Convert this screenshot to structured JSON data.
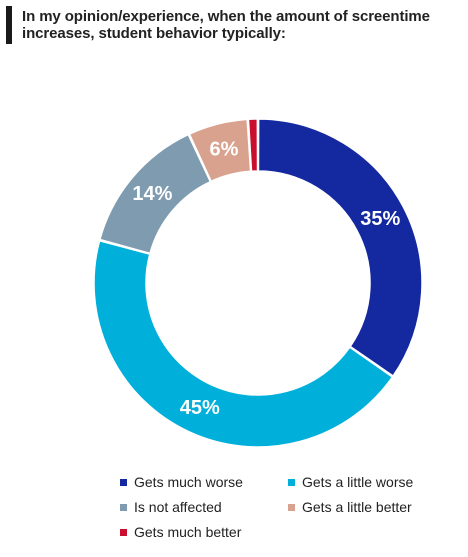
{
  "title": "In my opinion/experience, when the amount of screentime increases, student behavior typically:",
  "chart_data": {
    "type": "pie",
    "style": "donut",
    "title": "In my opinion/experience, when the amount of screentime increases, student behavior typically:",
    "categories": [
      "Gets much worse",
      "Gets a little worse",
      "Is not affected",
      "Gets a little better",
      "Gets much better"
    ],
    "values": [
      35,
      45,
      14,
      6,
      1
    ],
    "data_labels": [
      "35%",
      "45%",
      "14%",
      "6%",
      ""
    ],
    "colors": [
      "#1428a0",
      "#00b0da",
      "#7f9bb0",
      "#d9a28f",
      "#c8102e"
    ],
    "label_colors": [
      "#ffffff",
      "#ffffff",
      "#ffffff",
      "#ffffff",
      "#ffffff"
    ],
    "legend": {
      "position": "bottom",
      "items": [
        {
          "label": "Gets much worse",
          "color": "#1428a0"
        },
        {
          "label": "Gets a little worse",
          "color": "#00b0da"
        },
        {
          "label": "Is not affected",
          "color": "#7f9bb0"
        },
        {
          "label": "Gets a little better",
          "color": "#d9a28f"
        },
        {
          "label": "Gets much better",
          "color": "#c8102e"
        }
      ]
    }
  }
}
